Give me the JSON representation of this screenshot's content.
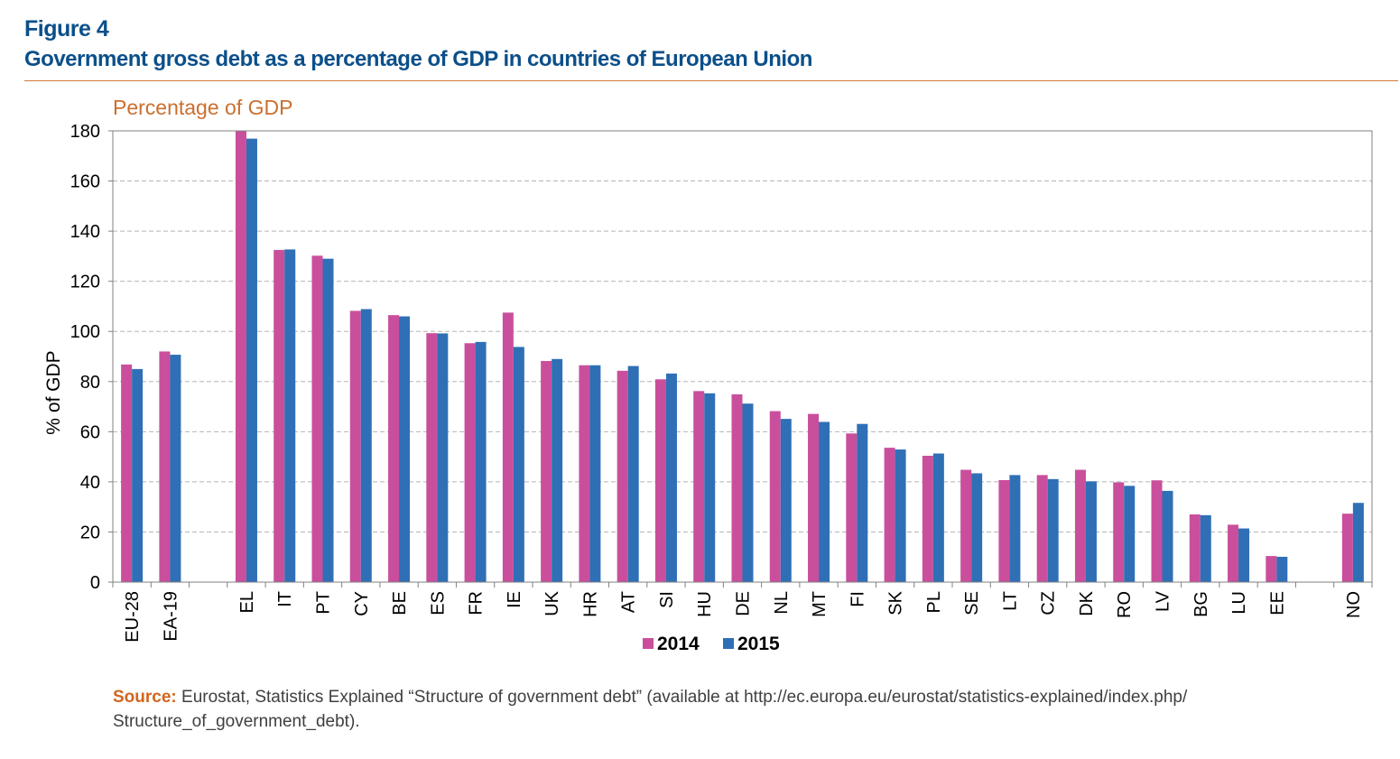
{
  "figure_label": "Figure 4",
  "figure_title": "Government gross debt as a percentage of GDP in countries of European Union",
  "source": {
    "label": "Source:",
    "line1": "Eurostat, Statistics Explained “Structure of government debt” (available at http://ec.europa.eu/eurostat/statistics-explained/index.php/",
    "line2": "Structure_of_government_debt)."
  },
  "colors": {
    "series_2014": "#c94f9c",
    "series_2015": "#2f6fb6",
    "title": "#0b4f8a",
    "accent": "#cc6f2e"
  },
  "chart_data": {
    "type": "bar",
    "title": "Percentage of GDP",
    "ylabel": "% of GDP",
    "xlabel": "",
    "ylim": [
      0,
      180
    ],
    "yticks": [
      0,
      20,
      40,
      60,
      80,
      100,
      120,
      140,
      160,
      180
    ],
    "grid": true,
    "legend_position": "bottom",
    "categories": [
      "EU-28",
      "EA-19",
      "",
      "EL",
      "IT",
      "PT",
      "CY",
      "BE",
      "ES",
      "FR",
      "IE",
      "UK",
      "HR",
      "AT",
      "SI",
      "HU",
      "DE",
      "NL",
      "MT",
      "FI",
      "SK",
      "PL",
      "SE",
      "LT",
      "CZ",
      "DK",
      "RO",
      "LV",
      "BG",
      "LU",
      "EE",
      "",
      "NO"
    ],
    "series": [
      {
        "name": "2014",
        "values": [
          86.8,
          92.0,
          null,
          180.1,
          132.5,
          130.2,
          108.2,
          106.5,
          99.3,
          95.3,
          107.5,
          88.2,
          86.5,
          84.3,
          80.9,
          76.2,
          74.9,
          68.2,
          67.1,
          59.3,
          53.6,
          50.4,
          44.8,
          40.7,
          42.7,
          44.8,
          39.8,
          40.6,
          27.0,
          22.9,
          10.4,
          null,
          27.3
        ]
      },
      {
        "name": "2015",
        "values": [
          85.0,
          90.7,
          null,
          176.9,
          132.7,
          129.0,
          108.9,
          106.0,
          99.2,
          95.8,
          93.8,
          89.0,
          86.5,
          86.2,
          83.2,
          75.3,
          71.2,
          65.1,
          63.9,
          63.1,
          52.9,
          51.3,
          43.4,
          42.7,
          41.1,
          40.2,
          38.4,
          36.4,
          26.7,
          21.4,
          10.1,
          null,
          31.6
        ]
      }
    ]
  }
}
